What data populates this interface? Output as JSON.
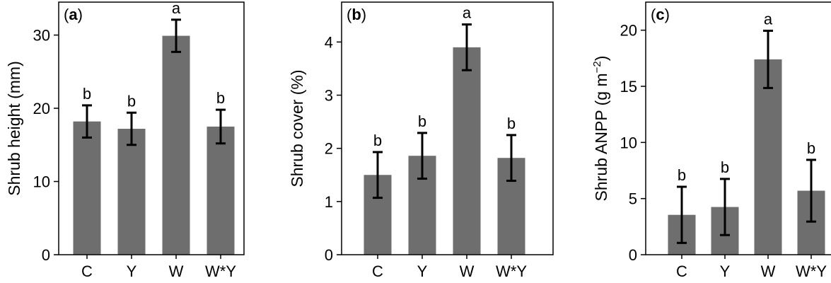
{
  "colors": {
    "bar": "#6e6e6e",
    "axis": "#000000",
    "error": "#000000"
  },
  "chart_data": [
    {
      "type": "bar",
      "panel_label": "a",
      "ylabel": "Shrub height (mm)",
      "ylabel_suffix": "",
      "categories": [
        "C",
        "Y",
        "W",
        "W*Y"
      ],
      "values": [
        18.2,
        17.2,
        29.9,
        17.5
      ],
      "errors": [
        2.2,
        2.2,
        2.2,
        2.3
      ],
      "letters": [
        "b",
        "b",
        "a",
        "b"
      ],
      "ylim": [
        0,
        34.5
      ],
      "yticks": [
        0,
        10,
        20,
        30
      ],
      "ytick_labels": [
        "0",
        "10",
        "20",
        "30"
      ]
    },
    {
      "type": "bar",
      "panel_label": "b",
      "ylabel": "Shrub cover (%)",
      "ylabel_suffix": "",
      "categories": [
        "C",
        "Y",
        "W",
        "W*Y"
      ],
      "values": [
        1.5,
        1.86,
        3.9,
        1.82
      ],
      "errors": [
        0.43,
        0.43,
        0.43,
        0.43
      ],
      "letters": [
        "b",
        "b",
        "a",
        "b"
      ],
      "ylim": [
        0,
        4.75
      ],
      "yticks": [
        0,
        1,
        2,
        3,
        4
      ],
      "ytick_labels": [
        "0",
        "1",
        "2",
        "3",
        "4"
      ]
    },
    {
      "type": "bar",
      "panel_label": "c",
      "ylabel": "Shrub ANPP (g m",
      "ylabel_sup": "−2",
      "ylabel_suffix": ")",
      "categories": [
        "C",
        "Y",
        "W",
        "W*Y"
      ],
      "values": [
        3.55,
        4.25,
        17.4,
        5.7
      ],
      "errors": [
        2.5,
        2.5,
        2.55,
        2.75
      ],
      "letters": [
        "b",
        "b",
        "a",
        "b"
      ],
      "ylim": [
        0,
        22.5
      ],
      "yticks": [
        0,
        5,
        10,
        15,
        20
      ],
      "ytick_labels": [
        "0",
        "5",
        "10",
        "15",
        "20"
      ]
    }
  ]
}
